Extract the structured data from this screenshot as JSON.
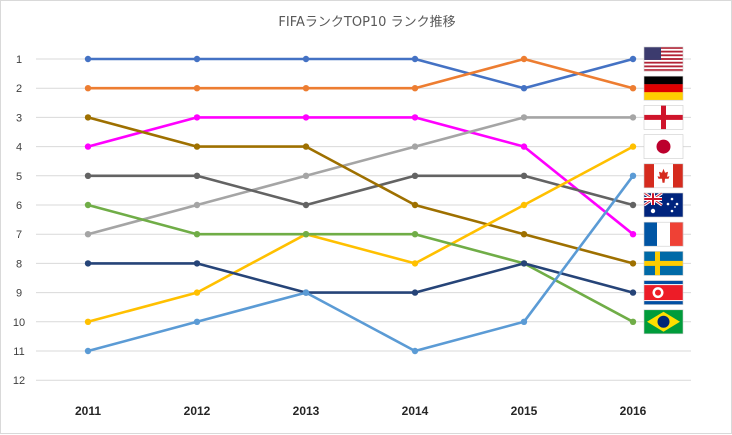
{
  "chart_data": {
    "type": "line",
    "title": "FIFAランクTOP10 ランク推移",
    "x": [
      "2011",
      "2012",
      "2013",
      "2014",
      "2015",
      "2016"
    ],
    "ylim": [
      1,
      12
    ],
    "y_inverted": true,
    "y_ticks": [
      "1",
      "2",
      "3",
      "4",
      "5",
      "6",
      "7",
      "8",
      "9",
      "10",
      "11",
      "12"
    ],
    "grid": "horizontal",
    "legend": "flags at right end of each line",
    "series": [
      {
        "values": [
          1,
          1,
          1,
          1,
          2,
          1
        ],
        "color": "#4472c4",
        "flag": "usa-flag"
      },
      {
        "values": [
          2,
          2,
          2,
          2,
          1,
          2
        ],
        "color": "#ed7d31",
        "flag": "germany-flag"
      },
      {
        "values": [
          4,
          3,
          3,
          3,
          4,
          7
        ],
        "color": "#ff00ff",
        "flag": "france-flag"
      },
      {
        "values": [
          7,
          6,
          5,
          4,
          3,
          3
        ],
        "color": "#a5a5a5",
        "flag": "england-flag"
      },
      {
        "values": [
          5,
          5,
          6,
          5,
          5,
          6
        ],
        "color": "#636363",
        "flag": "australia-flag"
      },
      {
        "values": [
          3,
          4,
          4,
          6,
          7,
          8
        ],
        "color": "#9e7000",
        "flag": "sweden-flag"
      },
      {
        "values": [
          10,
          9,
          7,
          8,
          6,
          4
        ],
        "color": "#ffc000",
        "flag": "japan-flag"
      },
      {
        "values": [
          6,
          7,
          7,
          7,
          8,
          10
        ],
        "color": "#70ad47",
        "flag": "brazil-flag"
      },
      {
        "values": [
          8,
          8,
          9,
          9,
          8,
          9
        ],
        "color": "#264478",
        "flag": "north-korea-flag"
      },
      {
        "values": [
          11,
          10,
          9,
          11,
          10,
          5
        ],
        "color": "#5b9bd5",
        "flag": "canada-flag"
      }
    ]
  }
}
